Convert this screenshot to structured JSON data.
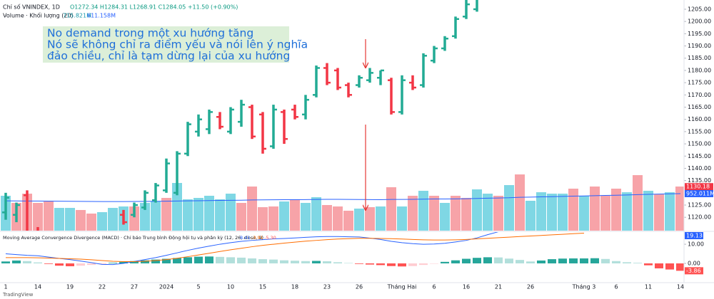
{
  "header": {
    "symbol": "Chỉ số VNINDEX, 1D",
    "ohlc": "O1272.34 H1284.31 L1268.91 C1284.05 +11.50 (+0.90%)",
    "brand": "TradingView"
  },
  "chart_data": [
    {
      "type": "ohlc",
      "categories": [
        "1",
        null,
        null,
        "14",
        null,
        null,
        "19",
        null,
        null,
        "22",
        null,
        null,
        "27",
        null,
        null,
        "2024",
        null,
        null,
        "5",
        null,
        null,
        "10",
        null,
        null,
        "15",
        null,
        null,
        "18",
        null,
        null,
        "23",
        null,
        null,
        "26",
        null,
        null,
        null,
        "Tháng Hai",
        null,
        null,
        "6",
        null,
        null,
        "16",
        null,
        null,
        "21",
        null,
        null,
        "26",
        null,
        null,
        null,
        null,
        "Tháng 3",
        null,
        null,
        "6",
        null,
        null,
        "11",
        null,
        null,
        "14"
      ],
      "open": [
        1122,
        1121,
        1129,
        1114,
        1110,
        1112,
        1107,
        1109,
        1105,
        1108,
        1104,
        1121,
        1121,
        1124,
        1127,
        1131,
        1130,
        1146,
        1155,
        1156,
        1161,
        1155,
        1159,
        1165,
        1162,
        1149,
        1163,
        1164,
        1162,
        1170,
        1181,
        1180,
        1174,
        1174,
        1176,
        1177,
        1176,
        1163,
        1175,
        1174,
        1184,
        1189,
        1194,
        1202,
        1205,
        null,
        null,
        null,
        null,
        null,
        null,
        null,
        null,
        null,
        null,
        null,
        null,
        null,
        null,
        null,
        null,
        null,
        null,
        null
      ],
      "high": [
        1130,
        1126,
        1131,
        1116,
        1114,
        1113,
        1111,
        1110,
        1109,
        1109,
        1112,
        1123,
        1126,
        1131,
        1134,
        1144,
        1147,
        1159,
        1162,
        1164,
        1163,
        1165,
        1168,
        1166,
        1163,
        1166,
        1164,
        1166,
        1170,
        1182,
        1183,
        1181,
        1175,
        1178,
        1181,
        1180,
        1177,
        1178,
        1178,
        1187,
        1190,
        1194,
        1202,
        1209,
        1212,
        null,
        null,
        null,
        null,
        null,
        null,
        null,
        null,
        null,
        null,
        null,
        null,
        null,
        null,
        null,
        null,
        null,
        null,
        null
      ],
      "low": [
        1119,
        1118,
        1110,
        1108,
        1107,
        1105,
        1104,
        1103,
        1102,
        1103,
        1103,
        1117,
        1120,
        1123,
        1126,
        1130,
        1129,
        1145,
        1153,
        1154,
        1156,
        1154,
        1157,
        1152,
        1146,
        1148,
        1150,
        1160,
        1160,
        1169,
        1174,
        1172,
        1169,
        1173,
        1175,
        1174,
        1162,
        1162,
        1172,
        1173,
        1183,
        1188,
        1193,
        1201,
        1204,
        null,
        null,
        null,
        null,
        null,
        null,
        null,
        null,
        null,
        null,
        null,
        null,
        null,
        null,
        null,
        null,
        null,
        null,
        null
      ],
      "close": [
        1128,
        1125,
        1114,
        1110,
        1112,
        1107,
        1109,
        1105,
        1108,
        1104,
        1111,
        1118,
        1125,
        1130,
        1133,
        1142,
        1146,
        1158,
        1160,
        1163,
        1157,
        1164,
        1166,
        1153,
        1148,
        1164,
        1152,
        1161,
        1168,
        1181,
        1175,
        1173,
        1170,
        1177,
        1179,
        1180,
        1163,
        1176,
        1173,
        1186,
        1189,
        1193,
        1201,
        1207,
        1210,
        null,
        null,
        null,
        null,
        null,
        null,
        null,
        null,
        null,
        null,
        null,
        null,
        null,
        null,
        null,
        null,
        null,
        null,
        null
      ],
      "up_color": "#22ab94",
      "down_color": "#f23645",
      "ylim": [
        1115.7,
        1207.9
      ],
      "yticks": [
        {
          "value": 1205,
          "label": "1205.00"
        },
        {
          "value": 1200,
          "label": "1200.00"
        },
        {
          "value": 1195,
          "label": "1195.00"
        },
        {
          "value": 1190,
          "label": "1190.00"
        },
        {
          "value": 1185,
          "label": "1185.00"
        },
        {
          "value": 1180,
          "label": "1180.00"
        },
        {
          "value": 1175,
          "label": "1175.00"
        },
        {
          "value": 1170,
          "label": "1170.00"
        },
        {
          "value": 1165,
          "label": "1165.00"
        },
        {
          "value": 1160,
          "label": "1160.00"
        },
        {
          "value": 1155,
          "label": "1155.00"
        },
        {
          "value": 1150,
          "label": "1150.00"
        },
        {
          "value": 1145,
          "label": "1145.00"
        },
        {
          "value": 1140,
          "label": "1140.00"
        },
        {
          "value": 1135,
          "label": "1135.00"
        },
        {
          "value": 1125,
          "label": "1125.00"
        },
        {
          "value": 1120,
          "label": "1120.00"
        }
      ],
      "last_tag": 1130.18,
      "annotation": [
        "No demand trong một xu hướng tăng",
        "Nó sẽ không chỉ ra điểm yếu và nói lên ý nghĩa",
        "đảo chiều, chỉ là tạm dừng lại của xu hướng"
      ]
    },
    {
      "type": "volume",
      "title": "Volume · Khối lượng (20)",
      "legend": [
        {
          "value": 715.821,
          "label": "715.821M"
        },
        {
          "value": 611.158,
          "label": "611.158M"
        }
      ],
      "values": [
        898,
        718,
        951,
        718,
        754,
        592,
        592,
        539,
        449,
        485,
        592,
        628,
        628,
        718,
        754,
        844,
        1221,
        808,
        844,
        898,
        808,
        951,
        718,
        1131,
        610,
        628,
        754,
        808,
        718,
        862,
        664,
        628,
        521,
        574,
        610,
        628,
        1113,
        628,
        898,
        1023,
        898,
        718,
        898,
        844,
        1059,
        951,
        898,
        1167,
        1436,
        772,
        987,
        951,
        951,
        1077,
        898,
        1131,
        898,
        1077,
        987,
        1418,
        1023,
        933,
        987,
        1131
      ],
      "colors": [
        "#7fd7e4",
        "#f7a3a8",
        "#f7a3a8",
        "#f7a3a8",
        "#f7a3a8",
        "#7fd7e4",
        "#7fd7e4",
        "#f7a3a8",
        "#f7a3a8",
        "#7fd7e4",
        "#7fd7e4",
        "#7fd7e4",
        "#f7a3a8",
        "#7fd7e4",
        "#7fd7e4",
        "#f7a3a8",
        "#7fd7e4",
        "#7fd7e4",
        "#7fd7e4",
        "#7fd7e4",
        "#7fd7e4",
        "#7fd7e4",
        "#f7a3a8",
        "#f7a3a8",
        "#f7a3a8",
        "#f7a3a8",
        "#7fd7e4",
        "#f7a3a8",
        "#7fd7e4",
        "#7fd7e4",
        "#f7a3a8",
        "#f7a3a8",
        "#f7a3a8",
        "#7fd7e4",
        "#f7a3a8",
        "#7fd7e4",
        "#f7a3a8",
        "#7fd7e4",
        "#f7a3a8",
        "#7fd7e4",
        "#f7a3a8",
        "#7fd7e4",
        "#f7a3a8",
        "#f7a3a8",
        "#7fd7e4",
        "#7fd7e4",
        "#f7a3a8",
        "#7fd7e4",
        "#f7a3a8",
        "#7fd7e4",
        "#7fd7e4",
        "#7fd7e4",
        "#7fd7e4",
        "#f7a3a8",
        "#7fd7e4",
        "#f7a3a8",
        "#f7a3a8",
        "#f7a3a8",
        "#7fd7e4",
        "#f7a3a8",
        "#7fd7e4",
        "#f7a3a8",
        "#7fd7e4",
        "#f7a3a8"
      ],
      "ma": [
        770,
        768,
        766,
        765,
        763,
        760,
        758,
        756,
        754,
        752,
        752,
        752,
        754,
        756,
        758,
        760,
        766,
        770,
        772,
        776,
        780,
        784,
        786,
        792,
        794,
        796,
        798,
        800,
        802,
        806,
        808,
        808,
        806,
        804,
        802,
        800,
        806,
        806,
        808,
        812,
        816,
        818,
        820,
        824,
        830,
        836,
        842,
        848,
        860,
        864,
        870,
        876,
        882,
        888,
        894,
        900,
        906,
        912,
        918,
        926,
        934,
        940,
        946,
        952.011
      ],
      "ma_color": "#2962ff",
      "ylim": [
        0,
        5781
      ],
      "last_tag": {
        "value": 952.011,
        "label": "952.011M"
      }
    },
    {
      "type": "macd",
      "title": "Moving Average Convergence Divergence (MACD) · Chỉ báo Trung bình Động hội tụ và phân kỳ (12, 26, close, 9)",
      "legend": [
        8.41,
        -3.91,
        {
          "value": -5.3,
          "label": "-5.30"
        }
      ],
      "histogram": [
        1,
        1.5,
        1.2,
        0.5,
        -0.3,
        -1.2,
        -1.5,
        -1.2,
        -0.8,
        -0.4,
        0.3,
        0.8,
        1.2,
        1.6,
        2,
        2.4,
        2.8,
        3.2,
        3.5,
        3.6,
        3.4,
        3.2,
        3,
        2.6,
        2.2,
        2,
        1.6,
        1.4,
        1.2,
        1.3,
        1.1,
        0.6,
        0.2,
        -0.3,
        -0.6,
        -0.9,
        -1.4,
        -1.6,
        -1.4,
        -0.8,
        -0.2,
        0.8,
        1.6,
        2.4,
        2.9,
        3.2,
        3.1,
        2.5,
        1.8,
        1,
        1.5,
        2.2,
        2.5,
        2.6,
        2.6,
        2.7,
        2.3,
        1.2,
        0.6,
        0.3,
        -1,
        -2.6,
        -3.2,
        -3.86
      ],
      "macd": [
        5,
        4.6,
        4.2,
        4,
        3.3,
        2.6,
        2,
        1.2,
        0.4,
        -0.5,
        -0.6,
        0,
        1,
        2,
        3,
        4.2,
        5.5,
        6.8,
        8,
        9,
        10,
        10.8,
        11.5,
        12,
        12.4,
        12.8,
        13,
        13.3,
        13.6,
        13.9,
        14,
        14,
        13.9,
        13.8,
        13.2,
        12.5,
        11.5,
        10.8,
        10.3,
        10,
        10.1,
        10.5,
        11.2,
        12,
        13.3,
        15,
        16.5,
        null,
        null,
        null,
        null,
        null,
        null,
        null,
        null,
        null,
        null,
        null,
        null,
        null,
        null,
        null,
        null,
        null
      ],
      "signal": [
        3,
        3,
        3,
        2.9,
        2.8,
        2.6,
        2.4,
        2.2,
        1.9,
        1.5,
        1.1,
        0.9,
        0.9,
        1.1,
        1.5,
        2,
        2.7,
        3.5,
        4.4,
        5.3,
        6.2,
        7.1,
        7.9,
        8.7,
        9.4,
        10,
        10.6,
        11.1,
        11.6,
        12,
        12.4,
        12.7,
        12.9,
        13.1,
        13.1,
        13,
        12.9,
        12.7,
        12.5,
        12.3,
        12.2,
        12.2,
        12.3,
        12.5,
        12.8,
        13.1,
        13.4,
        13.7,
        14,
        14.3,
        14.6,
        14.9,
        15.2,
        15.5,
        15.8,
        null,
        null,
        null,
        null,
        null,
        null,
        null,
        null,
        null
      ],
      "macd_color": "#2962ff",
      "signal_color": "#ff6d00",
      "histogram_colors": {
        "up_rising": "#26a69a",
        "up_falling": "#b2dfdb",
        "down_falling": "#ff5252",
        "down_rising": "#ffcdd2"
      },
      "ylim": [
        -9.3,
        15.6
      ],
      "yticks": [
        {
          "value": 10,
          "label": "10.00"
        },
        {
          "value": 0,
          "label": "0.00"
        }
      ],
      "last_macd": 19.13
    }
  ]
}
